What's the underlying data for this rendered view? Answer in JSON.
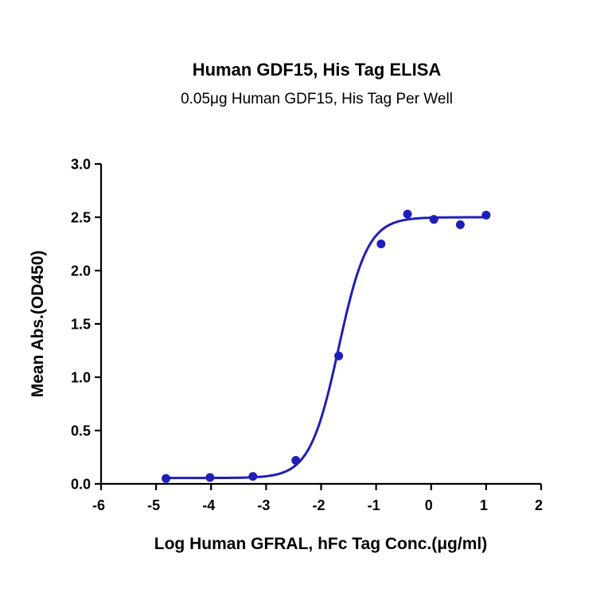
{
  "chart_data": {
    "type": "scatter",
    "title": "Human GDF15, His Tag ELISA",
    "subtitle": "0.05μg Human GDF15, His Tag Per Well",
    "xlabel": "Log Human GFRAL, hFc Tag Conc.(μg/ml)",
    "ylabel": "Mean Abs.(OD450)",
    "xlim": [
      -6,
      2
    ],
    "ylim": [
      0,
      3.0
    ],
    "x_ticks": [
      -6,
      -5,
      -4,
      -3,
      -2,
      -1,
      0,
      1,
      2
    ],
    "x_tick_labels": [
      "-6",
      "-5",
      "-4",
      "-3",
      "-2",
      "-1",
      "0",
      "1",
      "2"
    ],
    "y_ticks": [
      0,
      0.5,
      1.0,
      1.5,
      2.0,
      2.5,
      3.0
    ],
    "y_tick_labels": [
      "0.0",
      "0.5",
      "1.0",
      "1.5",
      "2.0",
      "2.5",
      "3.0"
    ],
    "grid": false,
    "legend": "none",
    "color": "#1f1fb8",
    "series": [
      {
        "x": [
          -4.82,
          -4.02,
          -3.24,
          -2.46,
          -1.68,
          -0.91,
          -0.43,
          0.05,
          0.53,
          1.0
        ],
        "y": [
          0.05,
          0.06,
          0.07,
          0.22,
          1.2,
          2.25,
          2.53,
          2.48,
          2.43,
          2.52
        ],
        "fit": {
          "model": "4PL",
          "bottom": 0.055,
          "top": 2.5,
          "logEC50": -1.68,
          "hill": 1.65,
          "x_range": [
            -4.82,
            1.0
          ]
        }
      }
    ]
  }
}
